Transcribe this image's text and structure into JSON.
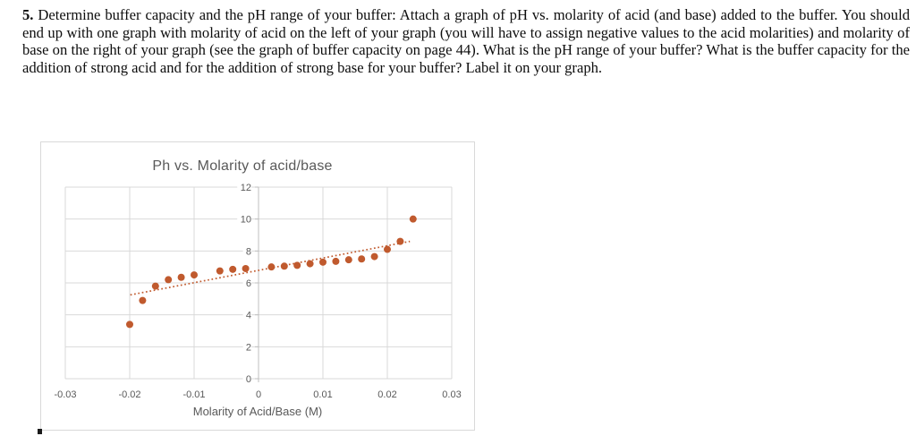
{
  "question": {
    "number": "5.",
    "text": " Determine buffer capacity and the pH range of your buffer: Attach a graph of pH vs. molarity of acid (and base) added to the buffer. You should end up with one graph with molarity of acid on the left of your graph (you will have to assign negative values to the acid molarities) and molarity of base on the right of your graph (see the graph of buffer capacity on page 44). What is the pH range of your buffer? What is the buffer capacity for the addition of strong acid and for the addition of strong base for your buffer? Label it on your graph."
  },
  "chart_data": {
    "type": "scatter",
    "title": "Ph vs. Molarity of acid/base",
    "xlabel": "Molarity of Acid/Base (M)",
    "ylabel": "",
    "xlim": [
      -0.03,
      0.03
    ],
    "ylim": [
      0,
      12
    ],
    "x_ticks": [
      -0.03,
      -0.02,
      -0.01,
      0,
      0.01,
      0.02,
      0.03
    ],
    "x_tick_labels": [
      "-0.03",
      "-0.02",
      "-0.01",
      "0",
      "0.01",
      "0.02",
      "0.03"
    ],
    "y_ticks": [
      0,
      2,
      4,
      6,
      8,
      10,
      12
    ],
    "grid": true,
    "legend": false,
    "points": [
      [
        -0.02,
        3.4
      ],
      [
        -0.018,
        4.9
      ],
      [
        -0.016,
        5.8
      ],
      [
        -0.014,
        6.2
      ],
      [
        -0.012,
        6.35
      ],
      [
        -0.01,
        6.5
      ],
      [
        -0.006,
        6.75
      ],
      [
        -0.004,
        6.85
      ],
      [
        -0.002,
        6.9
      ],
      [
        0.002,
        7.0
      ],
      [
        0.004,
        7.05
      ],
      [
        0.006,
        7.1
      ],
      [
        0.008,
        7.2
      ],
      [
        0.01,
        7.3
      ],
      [
        0.012,
        7.35
      ],
      [
        0.014,
        7.45
      ],
      [
        0.016,
        7.5
      ],
      [
        0.018,
        7.65
      ],
      [
        0.02,
        8.1
      ],
      [
        0.022,
        8.6
      ],
      [
        0.024,
        10.0
      ]
    ],
    "trendline": {
      "style": "dotted",
      "x_start": -0.0199,
      "ph_start": 5.25,
      "x_end": 0.0235,
      "ph_end": 8.6
    },
    "colors": {
      "points": "#c05a2e",
      "trendline": "#c05a2e",
      "gridlines": "#d9d9d9",
      "axis_line": "#bfbfbf",
      "tick_text": "#595959",
      "title_text": "#595959",
      "chart_border": "#d9d9d9"
    }
  }
}
